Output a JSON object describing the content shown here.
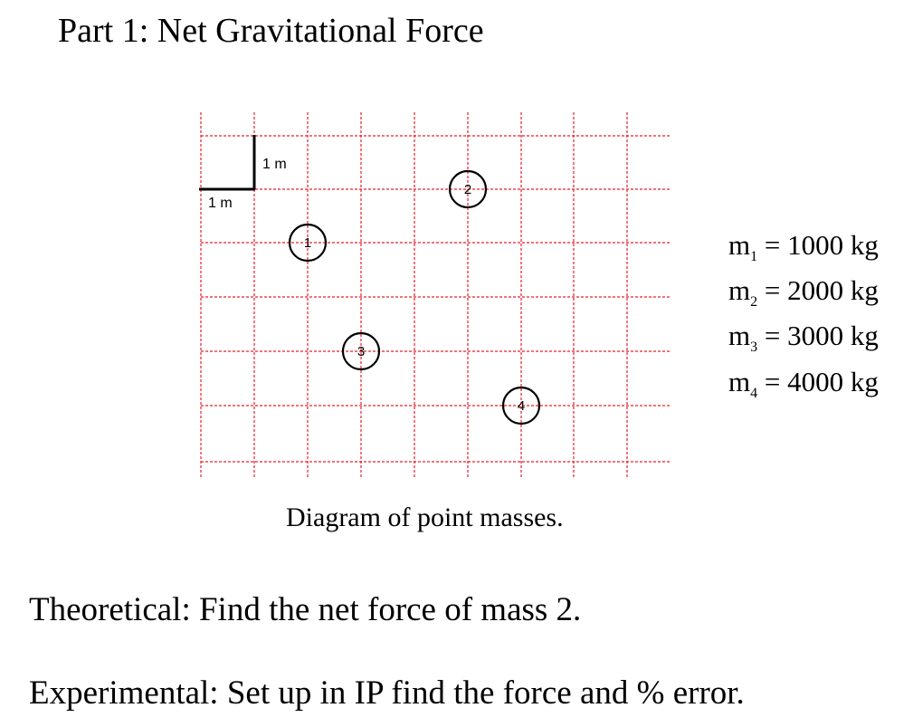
{
  "title": "Part 1: Net Gravitational Force",
  "diagram": {
    "scale_labels": {
      "vertical": "1 m",
      "horizontal": "1 m"
    },
    "grid_color": "#e8202a",
    "masses": [
      {
        "label": "1",
        "col": 2,
        "row": 2
      },
      {
        "label": "2",
        "col": 5,
        "row": 1
      },
      {
        "label": "3",
        "col": 3,
        "row": 4
      },
      {
        "label": "4",
        "col": 6,
        "row": 5
      }
    ],
    "caption": "Diagram of point masses."
  },
  "mass_values": [
    {
      "symbol": "m",
      "sub": "1",
      "value": "= 1000 kg"
    },
    {
      "symbol": "m",
      "sub": "2",
      "value": "= 2000 kg"
    },
    {
      "symbol": "m",
      "sub": "3",
      "value": "= 3000 kg"
    },
    {
      "symbol": "m",
      "sub": "4",
      "value": "= 4000 kg"
    }
  ],
  "theoretical": "Theoretical: Find the net force of mass 2.",
  "experimental": "Experimental: Set up in IP find the force and % error."
}
